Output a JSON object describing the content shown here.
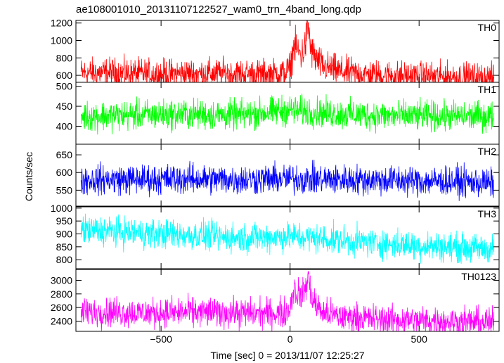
{
  "chart_data": {
    "type": "line",
    "title": "ae108001010_20131107122527_wam0_trn_4band_long.qdp",
    "xlabel": "Time [sec] 0 = 2013/11/07 12:25:27",
    "ylabel": "Counts/sec",
    "xlim": [
      -830,
      810
    ],
    "xticks": [
      -500,
      0,
      500
    ],
    "xtick_labels": [
      "−500",
      "0",
      "500"
    ],
    "grid": false,
    "panels": [
      {
        "name": "TH0",
        "color": "#ff0000",
        "ylim": [
          520,
          1230
        ],
        "yticks": [
          600,
          800,
          1000,
          1200
        ],
        "ytick_labels": [
          "600",
          "800",
          "1000",
          "1200"
        ],
        "x": [
          -810,
          -700,
          -600,
          -500,
          -400,
          -300,
          -200,
          -100,
          -20,
          0,
          15,
          30,
          45,
          60,
          70,
          80,
          100,
          130,
          200,
          300,
          400,
          500,
          600,
          700,
          800
        ],
        "y": [
          625,
          630,
          618,
          615,
          620,
          622,
          618,
          615,
          625,
          680,
          940,
          880,
          830,
          960,
          1190,
          900,
          780,
          700,
          640,
          610,
          600,
          590,
          585,
          580,
          570
        ]
      },
      {
        "name": "TH1",
        "color": "#00ff00",
        "ylim": [
          355,
          510
        ],
        "yticks": [
          400,
          450,
          500
        ],
        "ytick_labels": [
          "400",
          "450",
          "500"
        ],
        "x": [
          -810,
          -600,
          -400,
          -200,
          0,
          200,
          400,
          600,
          800
        ],
        "y": [
          425,
          428,
          430,
          428,
          440,
          430,
          426,
          425,
          425
        ]
      },
      {
        "name": "TH2",
        "color": "#0000ff",
        "ylim": [
          505,
          680
        ],
        "yticks": [
          550,
          600,
          650
        ],
        "ytick_labels": [
          "550",
          "600",
          "650"
        ],
        "x": [
          -810,
          -600,
          -400,
          -200,
          0,
          200,
          400,
          600,
          800
        ],
        "y": [
          580,
          580,
          582,
          580,
          582,
          580,
          578,
          575,
          570
        ]
      },
      {
        "name": "TH3",
        "color": "#00ffff",
        "ylim": [
          765,
          1005
        ],
        "yticks": [
          800,
          850,
          900,
          950,
          1000
        ],
        "ytick_labels": [
          "800",
          "850",
          "900",
          "950",
          "1000"
        ],
        "x": [
          -810,
          -600,
          -400,
          -200,
          0,
          200,
          400,
          600,
          800
        ],
        "y": [
          915,
          905,
          895,
          885,
          890,
          875,
          860,
          850,
          840
        ]
      },
      {
        "name": "TH0123",
        "color": "#ff00ff",
        "ylim": [
          2250,
          3160
        ],
        "yticks": [
          2400,
          2600,
          2800,
          3000
        ],
        "ytick_labels": [
          "2400",
          "2600",
          "2800",
          "3000"
        ],
        "x": [
          -810,
          -700,
          -600,
          -500,
          -400,
          -300,
          -200,
          -100,
          -20,
          0,
          15,
          30,
          45,
          60,
          70,
          80,
          100,
          130,
          200,
          300,
          400,
          500,
          600,
          700,
          800
        ],
        "y": [
          2530,
          2540,
          2520,
          2520,
          2530,
          2530,
          2520,
          2515,
          2520,
          2600,
          2880,
          2800,
          2780,
          2870,
          3080,
          2800,
          2640,
          2520,
          2460,
          2440,
          2420,
          2410,
          2400,
          2390,
          2380
        ]
      }
    ]
  }
}
